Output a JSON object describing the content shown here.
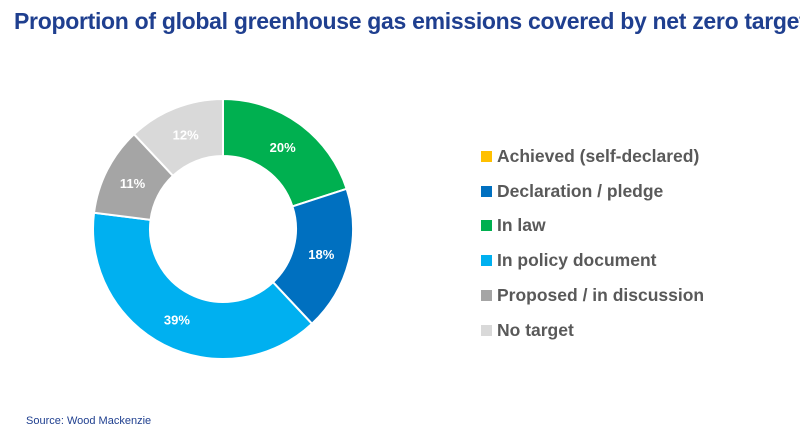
{
  "chart_data": {
    "type": "pie",
    "subtype": "donut",
    "title": "Proportion of global greenhouse gas emissions covered by net zero targets",
    "source": "Source: Wood Mackenzie",
    "legend_position": "right",
    "series": [
      {
        "name": "Achieved (self-declared)",
        "value": 0,
        "label": "",
        "color": "#ffc000"
      },
      {
        "name": "Declaration / pledge",
        "value": 18,
        "label": "18%",
        "color": "#0070c0"
      },
      {
        "name": "In law",
        "value": 20,
        "label": "20%",
        "color": "#00b050"
      },
      {
        "name": "In policy document",
        "value": 39,
        "label": "39%",
        "color": "#00b0f0"
      },
      {
        "name": "Proposed / in discussion",
        "value": 11,
        "label": "11%",
        "color": "#a5a5a5"
      },
      {
        "name": "No target",
        "value": 12,
        "label": "12%",
        "color": "#d9d9d9"
      }
    ],
    "draw_order": [
      "Achieved (self-declared)",
      "In law",
      "Declaration / pledge",
      "In policy document",
      "Proposed / in discussion",
      "No target"
    ]
  }
}
